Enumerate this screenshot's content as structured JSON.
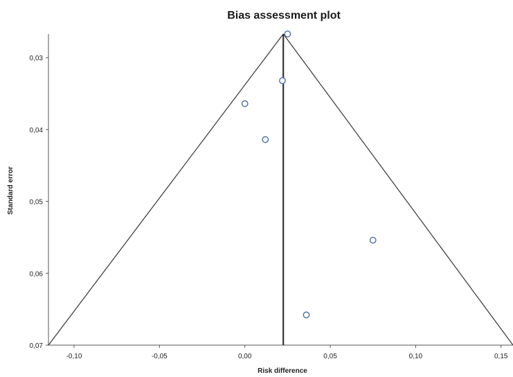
{
  "chart_data": {
    "type": "scatter",
    "title": "Bias assessment plot",
    "xlabel": "Risk difference",
    "ylabel": "Standard error",
    "xlim": [
      -0.115,
      0.157
    ],
    "ylim": [
      0.0267,
      0.07
    ],
    "y_inverted": true,
    "grid": false,
    "x_ticks": [
      "-0,10",
      "-0,05",
      "0,00",
      "0,05",
      "0,10",
      "0,15"
    ],
    "x_tick_values": [
      -0.1,
      -0.05,
      0.0,
      0.05,
      0.1,
      0.15
    ],
    "y_ticks": [
      "0,03",
      "0,04",
      "0,05",
      "0,06",
      "0,07"
    ],
    "y_tick_values": [
      0.03,
      0.04,
      0.05,
      0.06,
      0.07
    ],
    "pooled_estimate": 0.0225,
    "funnel_apex_se": 0.0267,
    "funnel_base": {
      "se": 0.07,
      "x_left": -0.115,
      "x_right": 0.157
    },
    "points": [
      {
        "x": 0.025,
        "y": 0.0267
      },
      {
        "x": 0.022,
        "y": 0.0332
      },
      {
        "x": 0.0,
        "y": 0.0364
      },
      {
        "x": 0.012,
        "y": 0.0414
      },
      {
        "x": 0.075,
        "y": 0.0554
      },
      {
        "x": 0.036,
        "y": 0.0658
      }
    ],
    "colors": {
      "marker": "#4a6fa5",
      "line": "#333333"
    }
  }
}
